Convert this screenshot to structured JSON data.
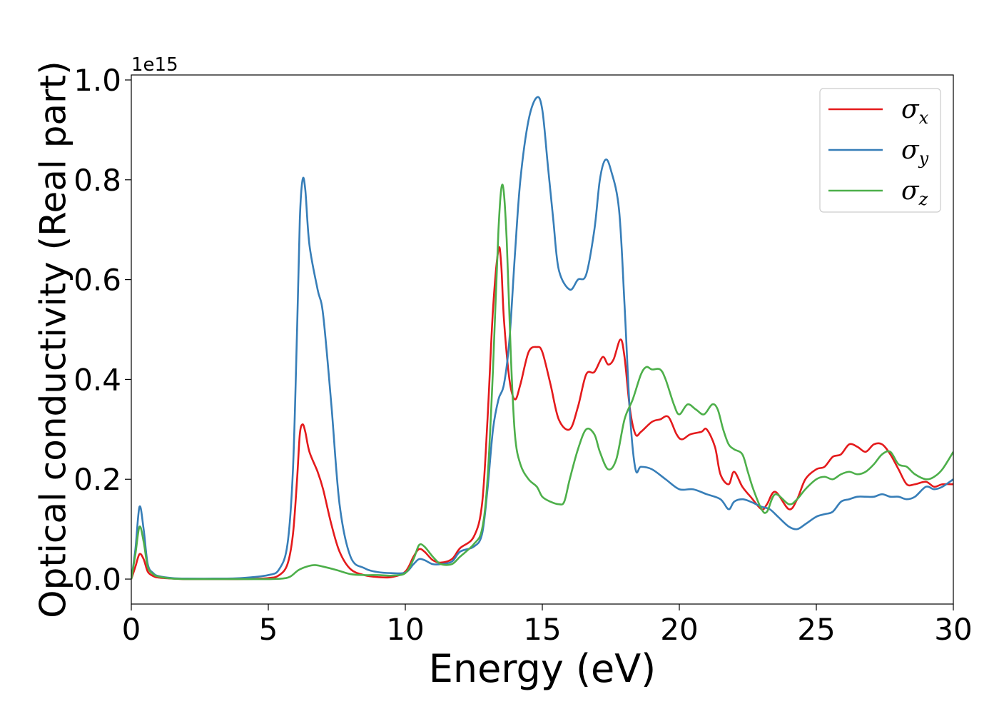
{
  "chart_data": {
    "type": "line",
    "title": "",
    "xlabel": "Energy (eV)",
    "ylabel": "Optical conductivity (Real part)",
    "y_offset_text": "1e15",
    "xlim": [
      0,
      30
    ],
    "ylim": [
      -0.05,
      1.01
    ],
    "x_ticks": [
      0,
      5,
      10,
      15,
      20,
      25,
      30
    ],
    "x_tick_labels": [
      "0",
      "5",
      "10",
      "15",
      "20",
      "25",
      "30"
    ],
    "y_ticks": [
      0.0,
      0.2,
      0.4,
      0.6,
      0.8,
      1.0
    ],
    "y_tick_labels": [
      "0.0",
      "0.2",
      "0.4",
      "0.6",
      "0.8",
      "1.0"
    ],
    "grid": false,
    "legend_position": "top-right",
    "series": [
      {
        "name": "σx",
        "label_base": "σ",
        "label_sub": "x",
        "color": "#e41a1c",
        "x": [
          0,
          0.15,
          0.3,
          0.45,
          0.6,
          0.8,
          1.0,
          1.5,
          2,
          3,
          4,
          5,
          5.4,
          5.7,
          5.9,
          6.05,
          6.15,
          6.25,
          6.35,
          6.5,
          6.8,
          7.0,
          7.3,
          7.6,
          8.0,
          8.5,
          9,
          9.5,
          10,
          10.3,
          10.5,
          10.7,
          11,
          11.3,
          11.7,
          12,
          12.5,
          12.8,
          13.0,
          13.2,
          13.4,
          13.5,
          13.6,
          13.8,
          14.0,
          14.2,
          14.5,
          14.8,
          15.0,
          15.3,
          15.6,
          16.0,
          16.3,
          16.6,
          16.9,
          17.2,
          17.4,
          17.6,
          17.85,
          18.0,
          18.2,
          18.4,
          18.6,
          19.0,
          19.3,
          19.6,
          19.9,
          20.1,
          20.4,
          20.8,
          21.0,
          21.3,
          21.5,
          21.8,
          22.0,
          22.3,
          22.6,
          23.0,
          23.2,
          23.5,
          24.0,
          24.3,
          24.6,
          25.0,
          25.3,
          25.6,
          25.9,
          26.2,
          26.5,
          26.8,
          27.1,
          27.4,
          27.7,
          28.0,
          28.3,
          28.6,
          29.0,
          29.3,
          29.6,
          30
        ],
        "y": [
          0.0,
          0.025,
          0.05,
          0.04,
          0.015,
          0.006,
          0.003,
          0.001,
          0.0,
          0.0,
          0.0,
          0.002,
          0.008,
          0.03,
          0.09,
          0.2,
          0.29,
          0.31,
          0.295,
          0.255,
          0.215,
          0.18,
          0.11,
          0.055,
          0.02,
          0.008,
          0.004,
          0.004,
          0.015,
          0.045,
          0.06,
          0.055,
          0.038,
          0.033,
          0.04,
          0.062,
          0.085,
          0.15,
          0.32,
          0.54,
          0.66,
          0.63,
          0.52,
          0.4,
          0.36,
          0.39,
          0.455,
          0.465,
          0.455,
          0.39,
          0.32,
          0.3,
          0.345,
          0.41,
          0.415,
          0.445,
          0.43,
          0.44,
          0.48,
          0.445,
          0.34,
          0.29,
          0.295,
          0.315,
          0.32,
          0.325,
          0.29,
          0.28,
          0.29,
          0.295,
          0.3,
          0.265,
          0.21,
          0.19,
          0.215,
          0.185,
          0.165,
          0.14,
          0.15,
          0.175,
          0.14,
          0.16,
          0.2,
          0.22,
          0.225,
          0.245,
          0.25,
          0.27,
          0.265,
          0.255,
          0.27,
          0.27,
          0.25,
          0.22,
          0.19,
          0.19,
          0.195,
          0.185,
          0.19,
          0.19
        ]
      },
      {
        "name": "σy",
        "label_base": "σ",
        "label_sub": "y",
        "color": "#377eb8",
        "x": [
          0,
          0.15,
          0.3,
          0.45,
          0.6,
          0.8,
          1.0,
          1.5,
          2,
          3,
          4,
          5,
          5.4,
          5.7,
          5.9,
          6.05,
          6.15,
          6.25,
          6.35,
          6.5,
          6.8,
          7.0,
          7.3,
          7.6,
          8.0,
          8.5,
          9,
          9.5,
          10,
          10.3,
          10.5,
          10.7,
          11,
          11.3,
          11.7,
          12,
          12.5,
          12.8,
          13.0,
          13.2,
          13.4,
          13.6,
          13.8,
          14.0,
          14.2,
          14.5,
          14.8,
          15.0,
          15.2,
          15.4,
          15.6,
          16.0,
          16.3,
          16.6,
          16.9,
          17.1,
          17.3,
          17.5,
          17.8,
          18.0,
          18.2,
          18.4,
          18.6,
          19.0,
          19.5,
          20.0,
          20.5,
          21.0,
          21.5,
          21.8,
          22.0,
          22.3,
          22.6,
          23.0,
          23.3,
          23.6,
          24.0,
          24.3,
          24.6,
          25.0,
          25.3,
          25.6,
          25.9,
          26.2,
          26.5,
          26.8,
          27.1,
          27.4,
          27.7,
          28.0,
          28.3,
          28.6,
          29.0,
          29.3,
          29.6,
          30
        ],
        "y": [
          0.0,
          0.06,
          0.145,
          0.1,
          0.03,
          0.012,
          0.006,
          0.002,
          0.001,
          0.001,
          0.002,
          0.008,
          0.02,
          0.07,
          0.22,
          0.5,
          0.72,
          0.8,
          0.78,
          0.67,
          0.58,
          0.53,
          0.35,
          0.15,
          0.045,
          0.022,
          0.014,
          0.012,
          0.013,
          0.03,
          0.04,
          0.038,
          0.03,
          0.03,
          0.035,
          0.055,
          0.065,
          0.09,
          0.18,
          0.3,
          0.36,
          0.39,
          0.48,
          0.65,
          0.8,
          0.92,
          0.965,
          0.94,
          0.83,
          0.72,
          0.62,
          0.58,
          0.6,
          0.61,
          0.7,
          0.8,
          0.84,
          0.82,
          0.74,
          0.55,
          0.33,
          0.22,
          0.225,
          0.22,
          0.2,
          0.18,
          0.18,
          0.17,
          0.16,
          0.14,
          0.155,
          0.16,
          0.155,
          0.145,
          0.14,
          0.125,
          0.105,
          0.1,
          0.11,
          0.125,
          0.13,
          0.135,
          0.155,
          0.16,
          0.165,
          0.165,
          0.165,
          0.17,
          0.165,
          0.165,
          0.16,
          0.165,
          0.185,
          0.18,
          0.185,
          0.2
        ]
      },
      {
        "name": "σz",
        "label_base": "σ",
        "label_sub": "z",
        "color": "#4daf4a",
        "x": [
          0,
          0.15,
          0.3,
          0.45,
          0.6,
          0.8,
          1.0,
          1.5,
          2,
          3,
          4,
          5,
          5.5,
          5.8,
          6.1,
          6.4,
          6.7,
          7.0,
          7.5,
          8.0,
          8.5,
          9.0,
          9.5,
          10.0,
          10.3,
          10.5,
          10.7,
          11.0,
          11.3,
          11.7,
          12.0,
          12.5,
          12.8,
          13.0,
          13.2,
          13.4,
          13.55,
          13.7,
          13.85,
          14.0,
          14.2,
          14.5,
          14.8,
          15.0,
          15.3,
          15.6,
          15.8,
          16.0,
          16.3,
          16.6,
          16.9,
          17.1,
          17.4,
          17.7,
          18.0,
          18.3,
          18.6,
          18.8,
          19.0,
          19.3,
          19.5,
          19.8,
          20.0,
          20.3,
          20.6,
          20.9,
          21.2,
          21.4,
          21.6,
          21.8,
          22.0,
          22.3,
          22.5,
          22.7,
          23.0,
          23.2,
          23.5,
          24.0,
          24.3,
          24.6,
          25.0,
          25.3,
          25.6,
          25.9,
          26.2,
          26.5,
          26.8,
          27.1,
          27.4,
          27.7,
          28.0,
          28.3,
          28.6,
          29.0,
          29.3,
          29.6,
          30
        ],
        "y": [
          0.0,
          0.05,
          0.105,
          0.075,
          0.025,
          0.01,
          0.005,
          0.001,
          0.0,
          0.0,
          0.0,
          0.0,
          0.001,
          0.005,
          0.018,
          0.025,
          0.028,
          0.025,
          0.018,
          0.01,
          0.008,
          0.008,
          0.007,
          0.012,
          0.04,
          0.068,
          0.065,
          0.045,
          0.03,
          0.03,
          0.045,
          0.07,
          0.1,
          0.2,
          0.42,
          0.7,
          0.79,
          0.68,
          0.45,
          0.29,
          0.23,
          0.2,
          0.185,
          0.165,
          0.155,
          0.15,
          0.155,
          0.2,
          0.26,
          0.3,
          0.29,
          0.255,
          0.22,
          0.24,
          0.32,
          0.36,
          0.41,
          0.425,
          0.42,
          0.42,
          0.4,
          0.35,
          0.33,
          0.35,
          0.34,
          0.33,
          0.35,
          0.34,
          0.3,
          0.27,
          0.26,
          0.25,
          0.215,
          0.18,
          0.14,
          0.135,
          0.17,
          0.15,
          0.16,
          0.18,
          0.2,
          0.205,
          0.2,
          0.21,
          0.215,
          0.21,
          0.215,
          0.23,
          0.25,
          0.255,
          0.23,
          0.225,
          0.21,
          0.2,
          0.205,
          0.22,
          0.255
        ]
      }
    ]
  }
}
